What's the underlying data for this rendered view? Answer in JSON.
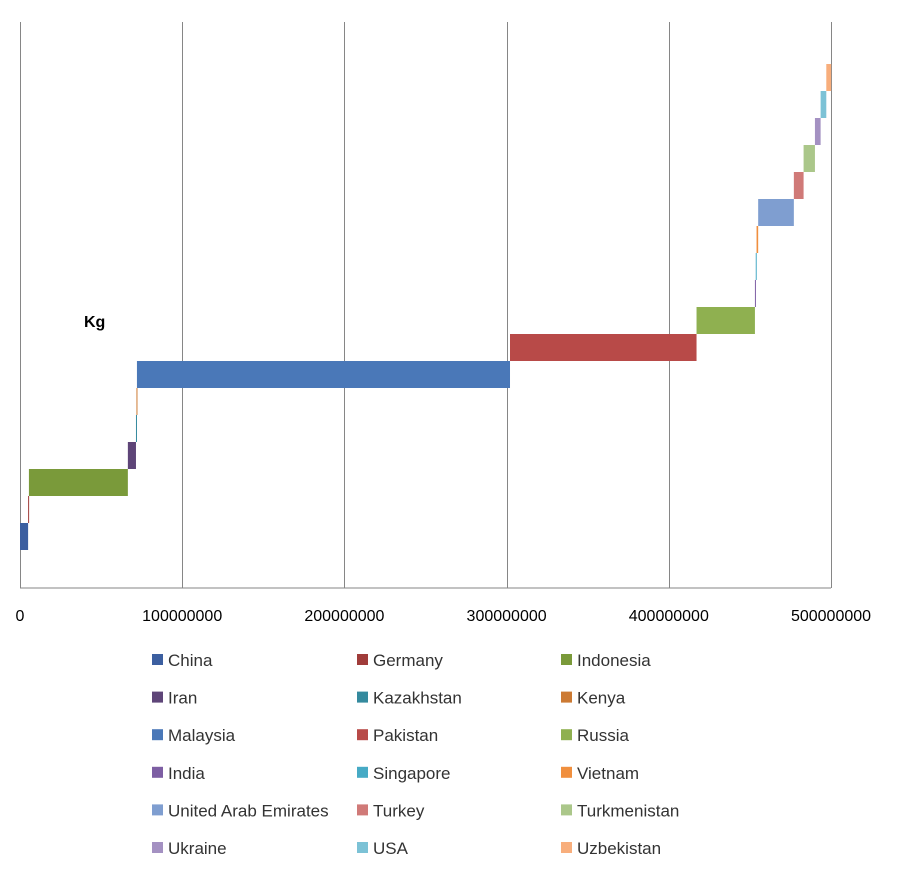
{
  "chart_data": {
    "type": "bar",
    "subtype": "floating-waterfall",
    "title": "",
    "xlabel": "",
    "ylabel": "",
    "annotation": "Kg",
    "xlim": [
      0,
      500000000
    ],
    "x_ticks": [
      0,
      100000000,
      200000000,
      300000000,
      400000000,
      500000000
    ],
    "x_tick_labels": [
      "0",
      "100000000",
      "200000000",
      "300000000",
      "400000000",
      "500000000"
    ],
    "grid": "vertical",
    "legend_position": "bottom",
    "series": [
      {
        "name": "China",
        "value": 5000000,
        "color": "#3c5fa0"
      },
      {
        "name": "Germany",
        "value": 500000,
        "color": "#a03c3a"
      },
      {
        "name": "Indonesia",
        "value": 61000000,
        "color": "#7a9a3a"
      },
      {
        "name": "Iran",
        "value": 5000000,
        "color": "#5e4578"
      },
      {
        "name": "Kazakhstan",
        "value": 300000,
        "color": "#348a9e"
      },
      {
        "name": "Kenya",
        "value": 300000,
        "color": "#cc7a33"
      },
      {
        "name": "Malaysia",
        "value": 230000000,
        "color": "#4a78b8"
      },
      {
        "name": "Pakistan",
        "value": 115000000,
        "color": "#b84a48"
      },
      {
        "name": "Russia",
        "value": 36000000,
        "color": "#8fb050"
      },
      {
        "name": "India",
        "value": 500000,
        "color": "#7d5ea3"
      },
      {
        "name": "Singapore",
        "value": 500000,
        "color": "#46aac5"
      },
      {
        "name": "Vietnam",
        "value": 1000000,
        "color": "#f08f3e"
      },
      {
        "name": "United Arab Emirates",
        "value": 22000000,
        "color": "#7f9ed0"
      },
      {
        "name": "Turkey",
        "value": 6000000,
        "color": "#d07a78"
      },
      {
        "name": "Turkmenistan",
        "value": 7000000,
        "color": "#abc78a"
      },
      {
        "name": "Ukraine",
        "value": 3500000,
        "color": "#a491c2"
      },
      {
        "name": "USA",
        "value": 3500000,
        "color": "#7cc2d6"
      },
      {
        "name": "Uzbekistan",
        "value": 3000000,
        "color": "#f8ae7c"
      }
    ]
  }
}
